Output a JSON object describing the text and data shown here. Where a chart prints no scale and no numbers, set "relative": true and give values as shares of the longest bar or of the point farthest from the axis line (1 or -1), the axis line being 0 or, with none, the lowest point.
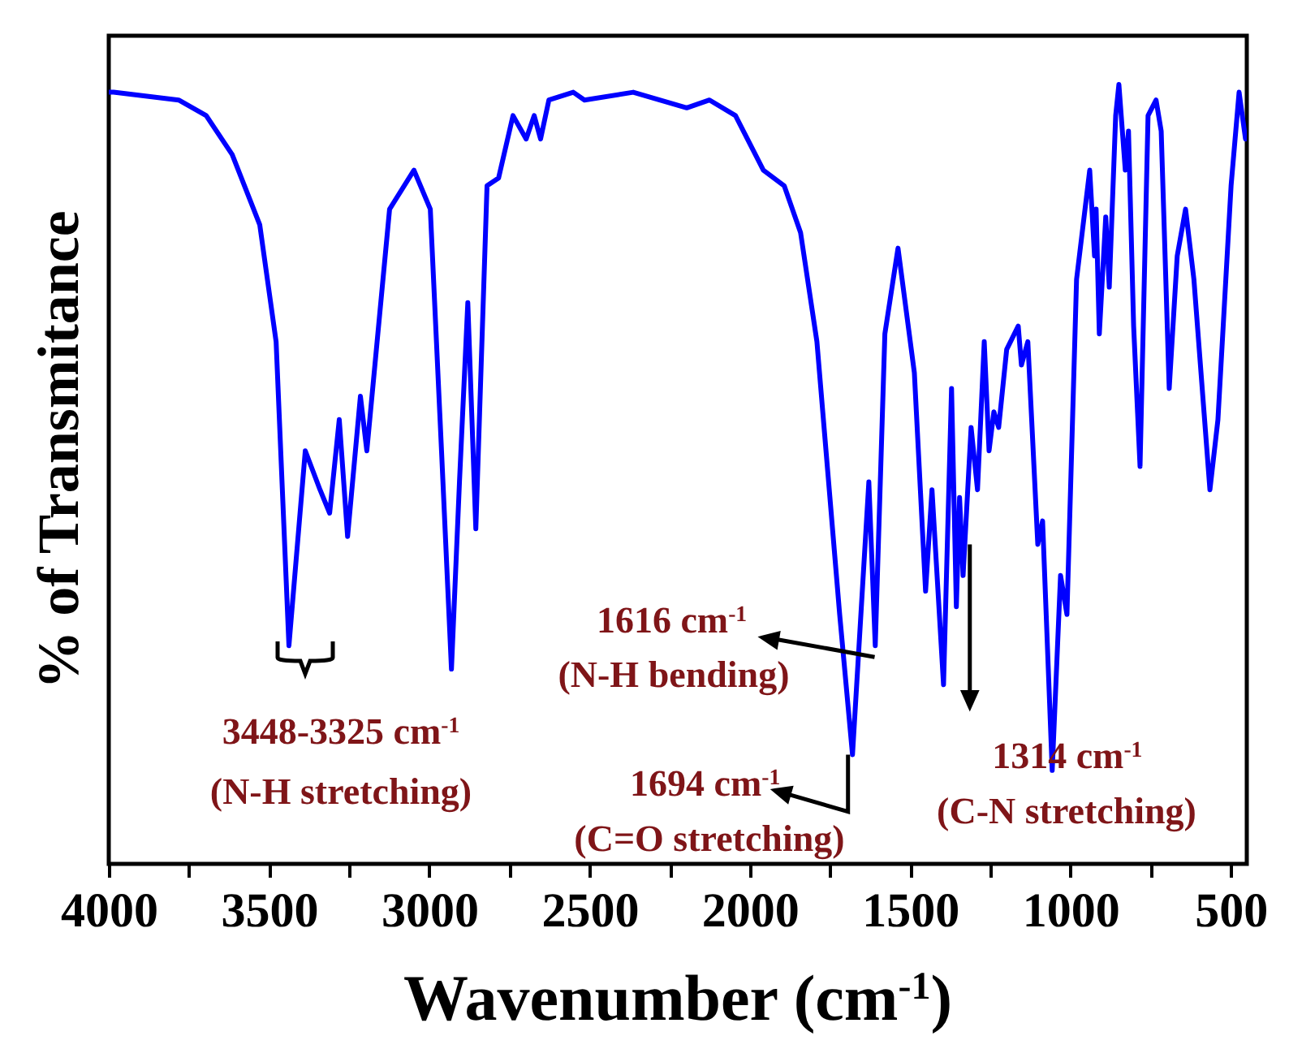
{
  "chart_data": {
    "type": "line",
    "relative": true,
    "xlabel": "Wavenumber (cm$^{-1}$)",
    "ylabel": "% of Transmitance",
    "xlim": [
      4000,
      450
    ],
    "xticks": [
      4000,
      {
        "value": 3750,
        "label": null
      },
      3500,
      {
        "value": 3250,
        "label": null
      },
      3000,
      {
        "value": 2750,
        "label": null
      },
      2500,
      {
        "value": 2250,
        "label": null
      },
      2000,
      {
        "value": 1750,
        "label": null
      },
      1500,
      {
        "value": 1250,
        "label": null
      },
      1000,
      {
        "value": 750,
        "label": null
      },
      500
    ],
    "tick_labels": "x",
    "grid": false,
    "marker": "none",
    "line_style": "solid",
    "x": [
      4000,
      3985,
      3782,
      3696,
      3615,
      3529,
      3478,
      3438,
      3387,
      3341,
      3311,
      3281,
      3255,
      3215,
      3195,
      3124,
      3048,
      2997,
      2962,
      2931,
      2906,
      2880,
      2855,
      2820,
      2784,
      2739,
      2698,
      2673,
      2653,
      2627,
      2551,
      2516,
      2364,
      2197,
      2126,
      2045,
      1958,
      1893,
      1842,
      1791,
      1720,
      1680,
      1629,
      1609,
      1579,
      1538,
      1487,
      1452,
      1432,
      1396,
      1371,
      1356,
      1346,
      1335,
      1310,
      1290,
      1269,
      1254,
      1239,
      1224,
      1199,
      1163,
      1153,
      1133,
      1102,
      1087,
      1057,
      1031,
      1011,
      981,
      940,
      925,
      920,
      910,
      890,
      879,
      859,
      849,
      829,
      819,
      803,
      783,
      758,
      733,
      717,
      692,
      667,
      641,
      615,
      565,
      540,
      499,
      474,
      454
    ],
    "series": [
      {
        "color": "#0000ff",
        "values": [
          0.99,
          0.99,
          0.98,
          0.96,
          0.91,
          0.82,
          0.67,
          0.28,
          0.53,
          0.48,
          0.45,
          0.57,
          0.42,
          0.6,
          0.53,
          0.84,
          0.89,
          0.84,
          0.53,
          0.25,
          0.49,
          0.72,
          0.43,
          0.87,
          0.88,
          0.96,
          0.93,
          0.96,
          0.93,
          0.98,
          0.99,
          0.98,
          0.99,
          0.97,
          0.98,
          0.96,
          0.89,
          0.87,
          0.81,
          0.67,
          0.32,
          0.14,
          0.49,
          0.28,
          0.68,
          0.79,
          0.63,
          0.35,
          0.48,
          0.23,
          0.61,
          0.33,
          0.47,
          0.37,
          0.56,
          0.48,
          0.67,
          0.53,
          0.58,
          0.56,
          0.66,
          0.69,
          0.64,
          0.67,
          0.41,
          0.44,
          0.12,
          0.37,
          0.32,
          0.75,
          0.89,
          0.78,
          0.84,
          0.68,
          0.83,
          0.74,
          0.96,
          1,
          0.89,
          0.94,
          0.69,
          0.51,
          0.96,
          0.98,
          0.94,
          0.61,
          0.78,
          0.84,
          0.75,
          0.48,
          0.57,
          0.87,
          0.99,
          0.93
        ]
      }
    ],
    "annotations": [
      "3448-3325 cm$^{-1}$",
      "(N-H stretching)",
      {
        "text": "1616 cm$^{-1}$",
        "x": 1616,
        "y": 0.28
      },
      "(N-H bending)",
      {
        "text": "1694 cm$^{-1}$",
        "x": 1694,
        "y": 0.14
      },
      "(C=O stretching)",
      {
        "text": "1314 cm$^{-1}$",
        "x": 1314,
        "y": 0.41
      },
      "(C-N stretching)"
    ]
  }
}
